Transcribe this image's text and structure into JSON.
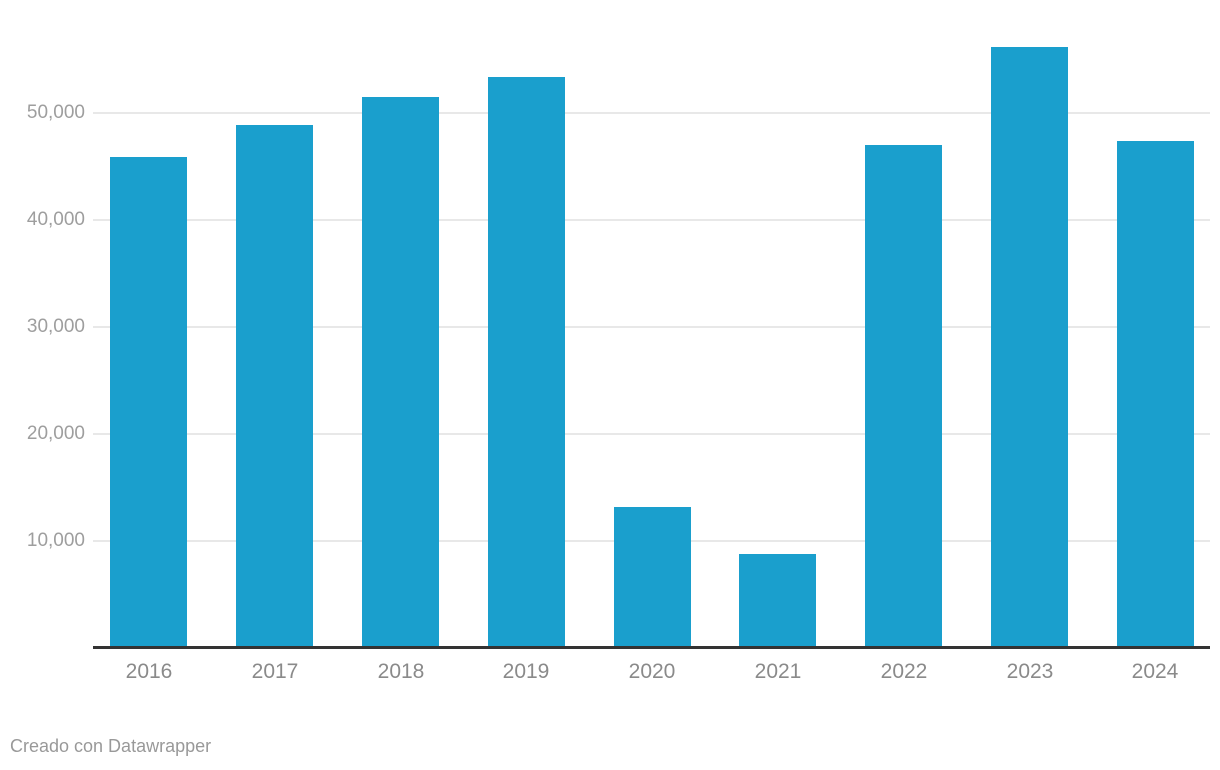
{
  "chart_data": {
    "type": "bar",
    "title": "",
    "categories": [
      "2016",
      "2017",
      "2018",
      "2019",
      "2020",
      "2021",
      "2022",
      "2023",
      "2024"
    ],
    "values": [
      45900,
      48900,
      51500,
      53400,
      13200,
      8800,
      47000,
      56200,
      47400
    ],
    "xlabel": "",
    "ylabel": "",
    "yticks": {
      "values": [
        10000,
        20000,
        30000,
        40000,
        50000
      ],
      "labels": [
        "10,000",
        "20,000",
        "30,000",
        "40,000",
        "50,000"
      ]
    },
    "ylim": [
      0,
      60500
    ],
    "grid": "horizontal",
    "legend": "none",
    "bar_color": "#1A9FCD"
  },
  "footer": {
    "attribution": "Creado con Datawrapper"
  },
  "colors": {
    "background": "#FFFFFF",
    "bar": "#1A9FCD",
    "gridline": "#E8E8E8",
    "axis_line": "#333333",
    "y_tick_label": "#9E9E9E",
    "x_tick_label": "#8A8A8A",
    "attribution": "#999999"
  }
}
